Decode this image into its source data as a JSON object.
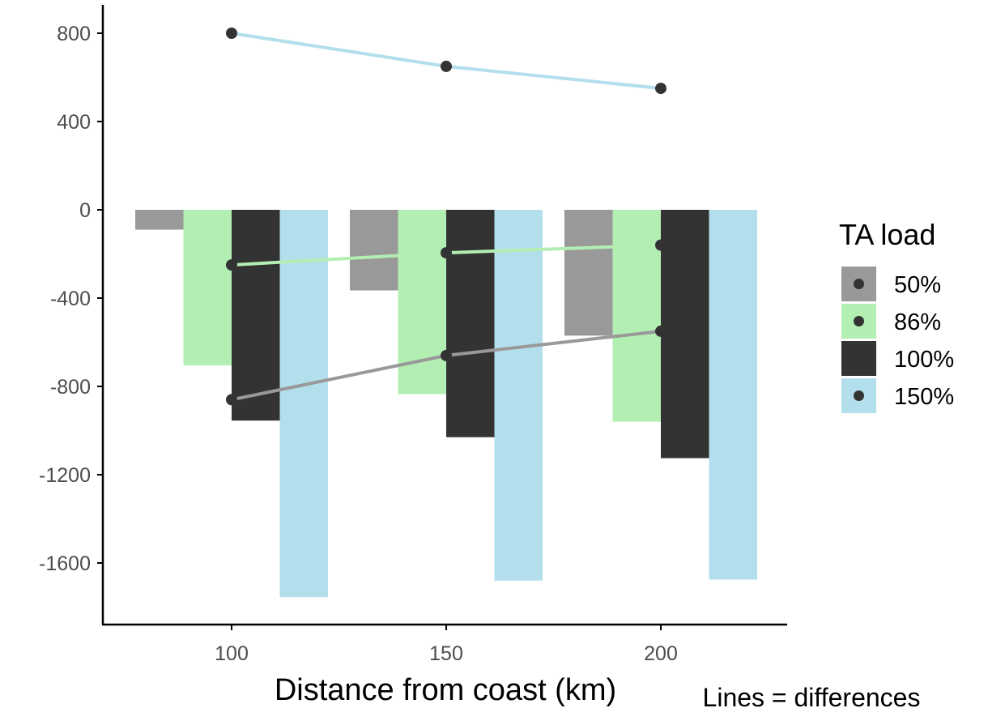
{
  "chart_data": {
    "type": "bar",
    "xlabel": "Distance from coast (km)",
    "ylabel": "",
    "x": [
      100,
      150,
      200
    ],
    "x_ticks": [
      "100",
      "150",
      "200"
    ],
    "y_ticks": [
      "800",
      "400",
      "0",
      "-400",
      "-800",
      "-1200",
      "-1600"
    ],
    "y_tick_values": [
      800,
      400,
      0,
      -400,
      -800,
      -1200,
      -1600
    ],
    "ylim": [
      -1850,
      930
    ],
    "legend_title": "TA load",
    "legend_position": "right",
    "series": [
      {
        "name": "50%",
        "color": "#999999",
        "values": [
          -90,
          -365,
          -570
        ]
      },
      {
        "name": "86%",
        "color": "#b3eeb3",
        "values": [
          -705,
          -835,
          -960
        ]
      },
      {
        "name": "100%",
        "color": "#333333",
        "values": [
          -955,
          -1030,
          -1125
        ]
      },
      {
        "name": "150%",
        "color": "#b3dfed",
        "values": [
          -1755,
          -1680,
          -1675
        ]
      }
    ],
    "lines": [
      {
        "color": "#b3dfed",
        "values": [
          800,
          650,
          550
        ]
      },
      {
        "color": "#b3eeb3",
        "values": [
          -250,
          -195,
          -160
        ]
      },
      {
        "color": "#999999",
        "values": [
          -860,
          -660,
          -550
        ]
      }
    ],
    "point_color": "#333333",
    "grid": false,
    "note": "Lines = differences"
  }
}
